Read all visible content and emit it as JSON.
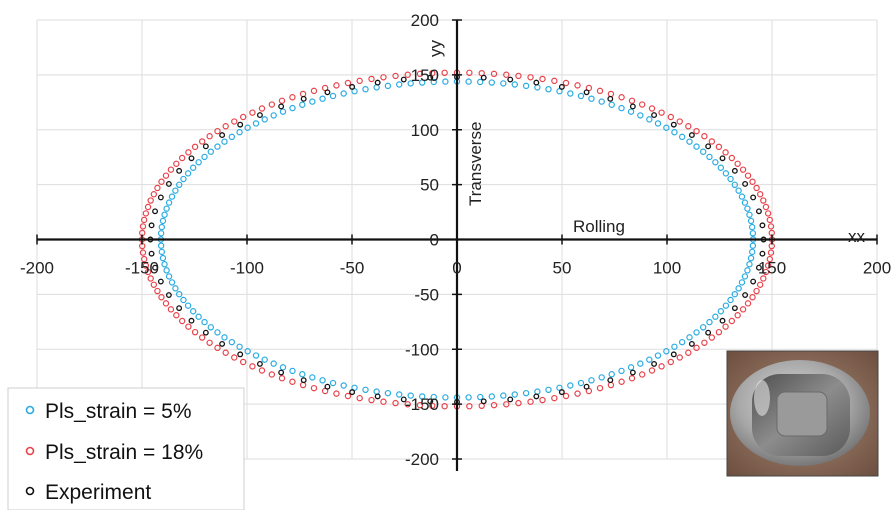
{
  "chart_data": {
    "type": "scatter",
    "xlim": [
      -200,
      200
    ],
    "ylim": [
      -200,
      200
    ],
    "x_ticks": [
      -200,
      -150,
      -100,
      -50,
      0,
      50,
      100,
      150,
      200
    ],
    "y_ticks": [
      -200,
      -150,
      -100,
      -50,
      0,
      50,
      100,
      150,
      200
    ],
    "x_tick_labels": [
      "-200",
      "-150",
      "-100",
      "-50",
      "0",
      "50",
      "100",
      "150",
      "200"
    ],
    "y_tick_labels": [
      "-200",
      "-150",
      "-100",
      "-50",
      "0",
      "50",
      "100",
      "150",
      "200"
    ],
    "xlabel": "xx",
    "ylabel": "yy",
    "annotations": {
      "rolling": "Rolling",
      "transverse": "Transverse"
    },
    "grid": true,
    "legend_position": "bottom-left",
    "series": [
      {
        "name": "Pls_strain = 5%",
        "color": "#29abe2",
        "marker": "open-circle",
        "shape": "ellipse",
        "x_semi_axis": 141,
        "y_semi_axis": 144,
        "point_count": 160
      },
      {
        "name": "Pls_strain = 18%",
        "color": "#e8434b",
        "marker": "open-circle",
        "shape": "ellipse",
        "x_semi_axis": 150,
        "y_semi_axis": 152,
        "point_count": 160
      },
      {
        "name": "Experiment",
        "color": "#111111",
        "marker": "open-circle",
        "shape": "ellipse",
        "x_semi_axis": 146,
        "y_semi_axis": 148,
        "point_count": 72
      }
    ]
  },
  "photo": {
    "icon": "stamped-cup-photo",
    "description_icon": "deep-drawn-square-cup-icon"
  }
}
